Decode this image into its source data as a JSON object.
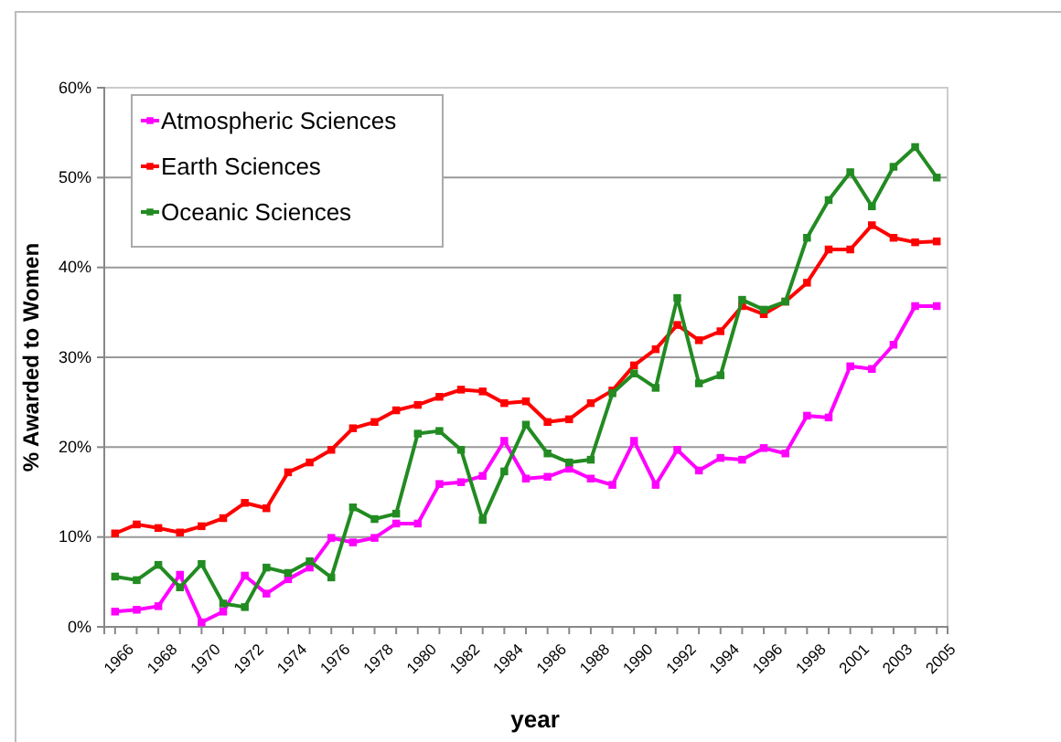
{
  "chart_data": {
    "type": "line",
    "xlabel": "year",
    "ylabel": "% Awarded to Women",
    "categories": [
      "1966",
      null,
      "1968",
      null,
      "1970",
      null,
      "1972",
      null,
      "1974",
      null,
      "1976",
      null,
      "1978",
      null,
      "1980",
      null,
      "1982",
      null,
      "1984",
      null,
      "1986",
      null,
      "1988",
      null,
      "1990",
      null,
      "1992",
      null,
      "1994",
      null,
      "1996",
      null,
      "1998",
      null,
      "2001",
      null,
      "2003",
      null,
      "2005"
    ],
    "series": [
      {
        "name": "Atmospheric Sciences",
        "color": "#ff00ff",
        "values": [
          1.7,
          1.9,
          2.3,
          5.8,
          0.5,
          1.7,
          5.7,
          3.7,
          5.3,
          6.6,
          9.9,
          9.4,
          9.9,
          11.5,
          11.5,
          15.9,
          16.1,
          16.8,
          20.7,
          16.5,
          16.7,
          17.6,
          16.5,
          15.8,
          20.7,
          15.8,
          19.7,
          17.4,
          18.8,
          18.6,
          19.9,
          19.3,
          23.5,
          23.3,
          29.0,
          28.7,
          31.4,
          35.7,
          35.7
        ]
      },
      {
        "name": "Earth Sciences",
        "color": "#ff0000",
        "values": [
          10.4,
          11.4,
          11.0,
          10.5,
          11.2,
          12.1,
          13.8,
          13.2,
          17.2,
          18.3,
          19.7,
          22.1,
          22.8,
          24.1,
          24.7,
          25.6,
          26.4,
          26.2,
          24.9,
          25.1,
          22.8,
          23.1,
          24.9,
          26.3,
          29.1,
          30.9,
          33.6,
          31.9,
          32.9,
          35.7,
          34.8,
          36.2,
          38.3,
          42.0,
          42.0,
          44.7,
          43.3,
          42.8,
          42.9
        ]
      },
      {
        "name": "Oceanic Sciences",
        "color": "#228b22",
        "values": [
          5.6,
          5.2,
          6.9,
          4.4,
          7.0,
          2.6,
          2.2,
          6.6,
          6.0,
          7.3,
          5.5,
          13.3,
          12.0,
          12.6,
          21.5,
          21.8,
          19.7,
          11.9,
          17.3,
          22.5,
          19.3,
          18.3,
          18.6,
          26.0,
          28.2,
          26.6,
          36.6,
          27.1,
          28.0,
          36.4,
          35.3,
          36.2,
          43.3,
          47.5,
          50.6,
          46.8,
          51.2,
          53.4,
          50.0
        ]
      }
    ],
    "ylim": [
      0,
      60
    ],
    "yticks": [
      {
        "value": 0,
        "label": "0%"
      },
      {
        "value": 10,
        "label": "10%"
      },
      {
        "value": 20,
        "label": "20%"
      },
      {
        "value": 30,
        "label": "30%"
      },
      {
        "value": 40,
        "label": "40%"
      },
      {
        "value": 50,
        "label": "50%"
      },
      {
        "value": 60,
        "label": "60%"
      }
    ],
    "grid": "y",
    "legend": "top left",
    "marker": "square",
    "line_style": "solid"
  }
}
